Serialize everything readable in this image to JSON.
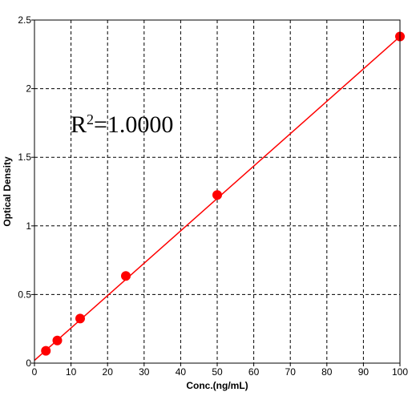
{
  "chart_data": {
    "type": "scatter",
    "xlabel": "Conc.(ng/mL)",
    "ylabel": "Optical Density",
    "xlim": [
      0,
      100
    ],
    "ylim": [
      0,
      2.5
    ],
    "xticks": [
      "0",
      "10",
      "20",
      "30",
      "40",
      "50",
      "60",
      "70",
      "80",
      "90",
      "100"
    ],
    "yticks": [
      "0",
      "0.5",
      "1",
      "1.5",
      "2",
      "2.5"
    ],
    "grid": true,
    "grid_style": "dashed",
    "annotation": {
      "prefix": "R",
      "superscript": "2",
      "text": "=1.0000"
    },
    "series": [
      {
        "type": "scatter",
        "color": "#ff0000",
        "points": [
          {
            "x": 3.125,
            "y": 0.09
          },
          {
            "x": 6.25,
            "y": 0.165
          },
          {
            "x": 12.5,
            "y": 0.325
          },
          {
            "x": 25,
            "y": 0.635
          },
          {
            "x": 50,
            "y": 1.225
          },
          {
            "x": 100,
            "y": 2.38
          }
        ]
      },
      {
        "type": "line",
        "color": "#ff0000",
        "fit": "linear",
        "points": [
          {
            "x": 0,
            "y": 0.02
          },
          {
            "x": 100,
            "y": 2.38
          }
        ]
      }
    ]
  }
}
